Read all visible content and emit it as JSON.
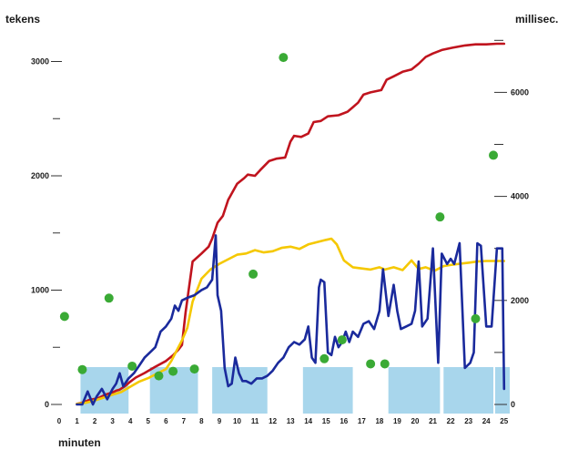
{
  "chart_data": {
    "type": "line",
    "left_axis_title": "tekens",
    "right_axis_title": "millisec.",
    "x_axis_title": "minuten",
    "left_ticks": [
      0,
      1000,
      2000,
      3000
    ],
    "left_minor_ticks": [
      500,
      1500,
      2500
    ],
    "right_ticks": [
      0,
      2000,
      4000,
      6000
    ],
    "right_minor_ticks": [
      1000,
      3000,
      5000,
      7000
    ],
    "x_tick_labels": [
      "0",
      "1",
      "2",
      "3",
      "4",
      "5",
      "6",
      "7",
      "8",
      "9",
      "10",
      "11",
      "12",
      "13",
      "14",
      "15",
      "16",
      "17",
      "18",
      "19",
      "20",
      "21",
      "22",
      "23",
      "24",
      "25"
    ],
    "xlim": [
      0,
      25
    ],
    "left_ylim": [
      0,
      3000
    ],
    "right_ylim": [
      0,
      7000
    ],
    "colors": {
      "red_series": "#c0141e",
      "yellow_series": "#f5c800",
      "blue_series": "#1a2a9c",
      "green_points": "#3aaa35",
      "bands": "#a8d6ec"
    },
    "bands": [
      [
        1.2,
        3.9
      ],
      [
        5.1,
        7.8
      ],
      [
        8.6,
        11.7
      ],
      [
        13.7,
        16.5
      ],
      [
        18.5,
        21.4
      ],
      [
        21.6,
        24.4
      ],
      [
        24.5,
        26.7
      ]
    ],
    "series": [
      {
        "axis": "left",
        "color": "red_series",
        "x": [
          1,
          1.4,
          1.7,
          2.2,
          2.6,
          3,
          3.2,
          3.4,
          3.7,
          4,
          4.3,
          4.8,
          5.4,
          6,
          6.4,
          6.7,
          6.9,
          7.1,
          7.5,
          8,
          8.4,
          8.6,
          8.9,
          9.2,
          9.5,
          10,
          10.4,
          10.6,
          11,
          11.3,
          11.8,
          12.2,
          12.7,
          13,
          13.2,
          13.6,
          14,
          14.3,
          14.7,
          15.1,
          15.7,
          16.2,
          16.5,
          16.8,
          17.1,
          17.5,
          18.1,
          18.4,
          18.8,
          19.3,
          19.8,
          20.2,
          20.6,
          21,
          21.5,
          22.1,
          22.8,
          23.4,
          24,
          24.6,
          25
        ],
        "y": [
          5,
          20,
          40,
          55,
          85,
          105,
          120,
          130,
          160,
          200,
          235,
          275,
          330,
          380,
          430,
          480,
          520,
          800,
          1250,
          1320,
          1380,
          1450,
          1590,
          1650,
          1790,
          1930,
          1980,
          2010,
          2000,
          2050,
          2130,
          2150,
          2160,
          2300,
          2350,
          2340,
          2370,
          2470,
          2480,
          2520,
          2530,
          2560,
          2600,
          2640,
          2710,
          2730,
          2750,
          2840,
          2870,
          2910,
          2930,
          2980,
          3040,
          3070,
          3100,
          3120,
          3140,
          3150,
          3150,
          3155,
          3155
        ]
      },
      {
        "axis": "left",
        "color": "yellow_series",
        "x": [
          1,
          1.5,
          2,
          2.5,
          3,
          3.5,
          4,
          4.5,
          5,
          5.5,
          6,
          6.3,
          6.6,
          6.9,
          7.2,
          7.5,
          8,
          8.5,
          9,
          9.5,
          10,
          10.5,
          11,
          11.5,
          12,
          12.5,
          13,
          13.5,
          14,
          14.5,
          15,
          15.3,
          15.6,
          16,
          16.5,
          17,
          17.5,
          18,
          18.3,
          18.8,
          19.3,
          19.8,
          20.2,
          20.6,
          21.1,
          21.6,
          22,
          22.5,
          23,
          23.5,
          24,
          24.5,
          25
        ],
        "y": [
          5,
          15,
          35,
          60,
          85,
          110,
          155,
          200,
          230,
          270,
          310,
          380,
          470,
          560,
          670,
          900,
          1100,
          1180,
          1230,
          1270,
          1310,
          1320,
          1350,
          1330,
          1340,
          1370,
          1380,
          1360,
          1400,
          1420,
          1440,
          1450,
          1400,
          1260,
          1200,
          1190,
          1180,
          1200,
          1180,
          1200,
          1175,
          1260,
          1185,
          1200,
          1170,
          1210,
          1220,
          1230,
          1240,
          1250,
          1255,
          1255,
          1255
        ]
      },
      {
        "axis": "right",
        "color": "blue_series",
        "x": [
          1,
          1.3,
          1.6,
          1.9,
          2.1,
          2.4,
          2.7,
          3,
          3.2,
          3.4,
          3.6,
          3.9,
          4.2,
          4.5,
          4.8,
          5.1,
          5.4,
          5.7,
          6,
          6.3,
          6.5,
          6.7,
          6.9,
          7.2,
          7.6,
          8,
          8.3,
          8.6,
          8.8,
          8.9,
          9.1,
          9.3,
          9.5,
          9.7,
          9.9,
          10.1,
          10.3,
          10.5,
          10.8,
          11.1,
          11.4,
          11.7,
          12,
          12.3,
          12.6,
          12.9,
          13.2,
          13.5,
          13.8,
          14,
          14.2,
          14.4,
          14.6,
          14.7,
          14.9,
          15.1,
          15.3,
          15.5,
          15.7,
          15.9,
          16.1,
          16.3,
          16.5,
          16.8,
          17.1,
          17.4,
          17.7,
          18,
          18.2,
          18.5,
          18.8,
          19,
          19.2,
          19.5,
          19.8,
          20,
          20.2,
          20.4,
          20.7,
          21,
          21.3,
          21.5,
          21.8,
          22,
          22.2,
          22.5,
          22.8,
          23.1,
          23.3,
          23.5,
          23.7,
          24,
          24.3,
          24.6,
          24.9,
          25
        ],
        "y": [
          0,
          0,
          250,
          0,
          150,
          300,
          100,
          300,
          400,
          600,
          350,
          500,
          600,
          750,
          900,
          1000,
          1100,
          1400,
          1500,
          1650,
          1900,
          1800,
          2000,
          2050,
          2100,
          2200,
          2250,
          2400,
          3250,
          2100,
          1800,
          700,
          350,
          400,
          900,
          600,
          450,
          450,
          400,
          500,
          500,
          550,
          650,
          800,
          900,
          1100,
          1200,
          1150,
          1250,
          1500,
          900,
          800,
          2250,
          2400,
          2350,
          1000,
          950,
          1300,
          1100,
          1200,
          1400,
          1200,
          1400,
          1300,
          1550,
          1600,
          1450,
          1800,
          2600,
          1700,
          2300,
          1800,
          1450,
          1500,
          1550,
          1800,
          2750,
          1500,
          1650,
          3000,
          800,
          2900,
          2700,
          2800,
          2700,
          3100,
          700,
          800,
          1000,
          3100,
          3050,
          1500,
          1500,
          3000,
          3000,
          300
        ]
      }
    ],
    "points": {
      "axis": "left",
      "color": "green_points",
      "x": [
        0.3,
        1.3,
        2.8,
        4.1,
        5.6,
        6.4,
        7.6,
        10.9,
        12.6,
        14.9,
        15.9,
        17.5,
        18.3,
        21.4,
        23.4,
        24.4
      ],
      "y": [
        770,
        305,
        930,
        335,
        250,
        290,
        310,
        1140,
        3035,
        400,
        565,
        355,
        355,
        1640,
        750,
        2180
      ]
    }
  }
}
